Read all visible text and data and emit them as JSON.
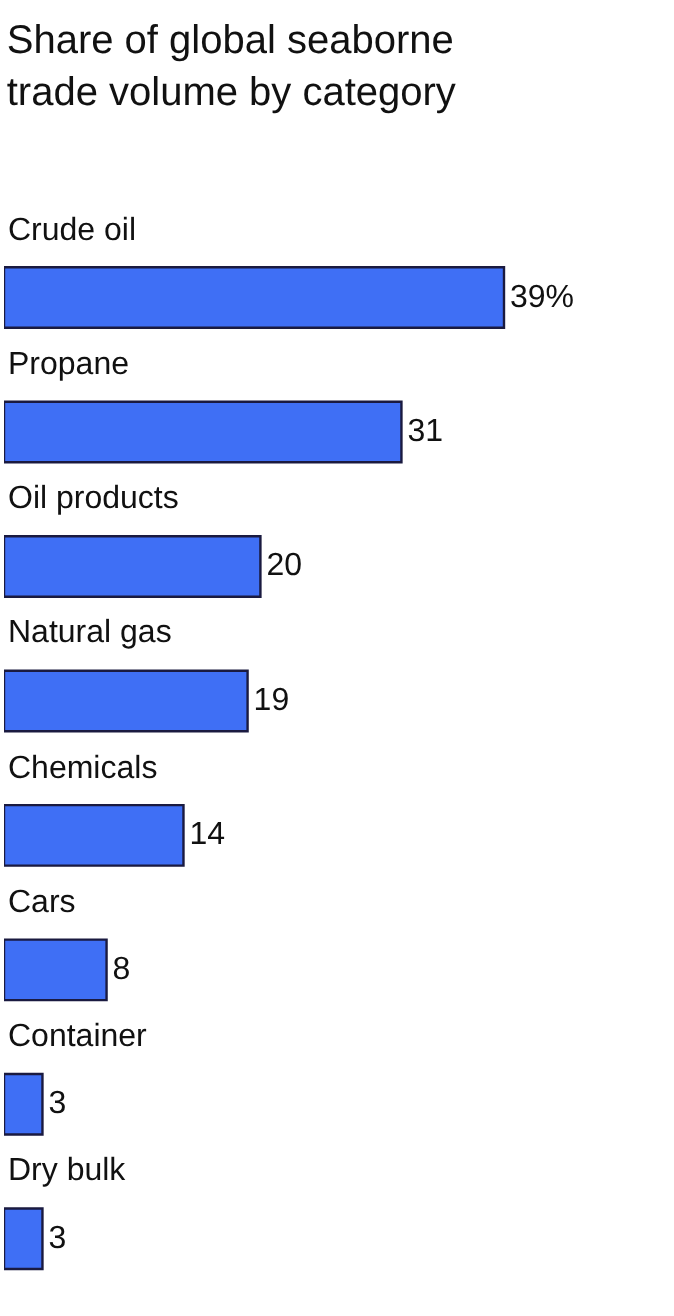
{
  "chart_data": {
    "type": "bar",
    "orientation": "horizontal",
    "title": "Share of global seaborne trade volume by category",
    "categories": [
      "Crude oil",
      "Propane",
      "Oil products",
      "Natural gas",
      "Chemicals",
      "Cars",
      "Container",
      "Dry bulk"
    ],
    "values": [
      39,
      31,
      20,
      19,
      14,
      8,
      3,
      3
    ],
    "value_labels": [
      "39%",
      "31",
      "20",
      "19",
      "14",
      "8",
      "3",
      "3"
    ],
    "color": "#3f6ff5",
    "legend": false
  }
}
